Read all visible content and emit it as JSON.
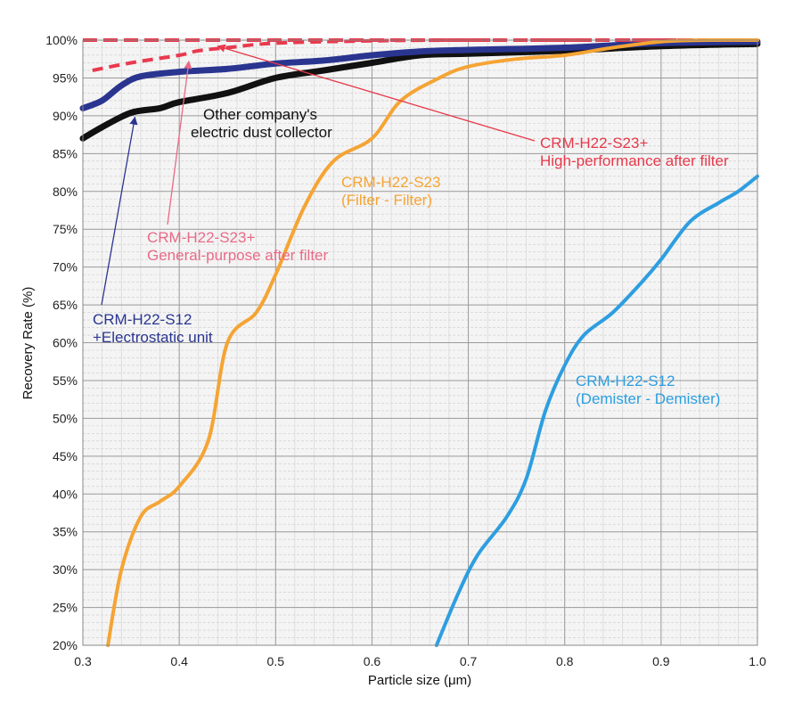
{
  "chart_data": {
    "type": "line",
    "title": "",
    "xlabel": "Particle size (μm)",
    "ylabel": "Recovery Rate (%)",
    "xlim": [
      0.3,
      1.0
    ],
    "ylim": [
      20,
      100
    ],
    "x_ticks": [
      0.3,
      0.4,
      0.5,
      0.6,
      0.7,
      0.8,
      0.9,
      1.0
    ],
    "x_tick_labels": [
      "0.3",
      "0.4",
      "0.5",
      "0.6",
      "0.7",
      "0.8",
      "0.9",
      "1.0"
    ],
    "y_ticks": [
      20,
      25,
      30,
      35,
      40,
      45,
      50,
      55,
      60,
      65,
      70,
      75,
      80,
      85,
      90,
      95,
      100
    ],
    "y_tick_labels": [
      "20%",
      "25%",
      "30%",
      "35%",
      "40%",
      "45%",
      "50%",
      "55%",
      "60%",
      "65%",
      "70%",
      "75%",
      "80%",
      "85%",
      "90%",
      "95%",
      "100%"
    ],
    "grid": true,
    "series": [
      {
        "name": "Other company's electric dust collector",
        "color": "#111111",
        "style": "solid",
        "points": [
          [
            0.3,
            87
          ],
          [
            0.32,
            88.5
          ],
          [
            0.35,
            90.4
          ],
          [
            0.38,
            91
          ],
          [
            0.4,
            91.8
          ],
          [
            0.45,
            93
          ],
          [
            0.5,
            95
          ],
          [
            0.55,
            96
          ],
          [
            0.6,
            97
          ],
          [
            0.65,
            98
          ],
          [
            0.7,
            98.2
          ],
          [
            0.8,
            98.6
          ],
          [
            0.9,
            99.2
          ],
          [
            1.0,
            99.5
          ]
        ]
      },
      {
        "name": "CRM-H22-S12 +Electrostatic unit",
        "color": "#2a3590",
        "style": "solid",
        "points": [
          [
            0.3,
            91
          ],
          [
            0.32,
            92
          ],
          [
            0.34,
            94
          ],
          [
            0.36,
            95.2
          ],
          [
            0.4,
            95.8
          ],
          [
            0.45,
            96.2
          ],
          [
            0.5,
            96.9
          ],
          [
            0.55,
            97.3
          ],
          [
            0.6,
            98
          ],
          [
            0.65,
            98.5
          ],
          [
            0.7,
            98.7
          ],
          [
            0.8,
            99
          ],
          [
            0.9,
            99.6
          ],
          [
            1.0,
            99.8
          ]
        ]
      },
      {
        "name": "CRM-H22-S23+ General-purpose after filter",
        "color": "#e83a4f",
        "style": "dashed",
        "points": [
          [
            0.31,
            96
          ],
          [
            0.35,
            97
          ],
          [
            0.4,
            98
          ],
          [
            0.42,
            98.6
          ],
          [
            0.45,
            99
          ],
          [
            0.5,
            99.6
          ],
          [
            0.6,
            99.9
          ],
          [
            0.7,
            100
          ],
          [
            1.0,
            100
          ]
        ]
      },
      {
        "name": "CRM-H22-S23+ High-performance after filter",
        "color": "#e8384a",
        "style": "dashed",
        "points": [
          [
            0.3,
            100
          ],
          [
            1.0,
            100
          ]
        ]
      },
      {
        "name": "CRM-H22-S23 (Filter - Filter)",
        "color": "#f5a434",
        "style": "solid",
        "points": [
          [
            0.326,
            20
          ],
          [
            0.34,
            30
          ],
          [
            0.36,
            37
          ],
          [
            0.38,
            39
          ],
          [
            0.4,
            41
          ],
          [
            0.43,
            47
          ],
          [
            0.45,
            60
          ],
          [
            0.48,
            64
          ],
          [
            0.5,
            69
          ],
          [
            0.53,
            78
          ],
          [
            0.56,
            84
          ],
          [
            0.6,
            87
          ],
          [
            0.63,
            92
          ],
          [
            0.67,
            95
          ],
          [
            0.7,
            96.5
          ],
          [
            0.75,
            97.5
          ],
          [
            0.8,
            98
          ],
          [
            0.85,
            99
          ],
          [
            0.9,
            99.8
          ],
          [
            0.95,
            100
          ],
          [
            1.0,
            100
          ]
        ]
      },
      {
        "name": "CRM-H22-S12 (Demister - Demister)",
        "color": "#2d9ee0",
        "style": "solid",
        "points": [
          [
            0.667,
            20
          ],
          [
            0.69,
            27
          ],
          [
            0.71,
            32
          ],
          [
            0.74,
            37
          ],
          [
            0.76,
            42
          ],
          [
            0.78,
            51
          ],
          [
            0.8,
            57
          ],
          [
            0.82,
            61
          ],
          [
            0.85,
            64
          ],
          [
            0.88,
            68
          ],
          [
            0.9,
            71
          ],
          [
            0.93,
            76
          ],
          [
            0.96,
            78.5
          ],
          [
            0.98,
            80
          ],
          [
            1.0,
            82
          ]
        ]
      }
    ],
    "annotations": [
      {
        "id": "other",
        "lines": [
          "Other company's",
          "electric dust collector"
        ],
        "color": "#111111"
      },
      {
        "id": "hp",
        "lines": [
          "CRM-H22-S23+",
          "High-performance after filter"
        ],
        "color": "#e8384a"
      },
      {
        "id": "ff",
        "lines": [
          "CRM-H22-S23",
          "(Filter - Filter)"
        ],
        "color": "#f5a434"
      },
      {
        "id": "gp",
        "lines": [
          "CRM-H22-S23+",
          "General-purpose after filter"
        ],
        "color": "#e96a86"
      },
      {
        "id": "es",
        "lines": [
          "CRM-H22-S12",
          "+Electrostatic unit"
        ],
        "color": "#2a3590"
      },
      {
        "id": "dd",
        "lines": [
          "CRM-H22-S12",
          "(Demister - Demister)"
        ],
        "color": "#2d9ee0"
      }
    ]
  }
}
